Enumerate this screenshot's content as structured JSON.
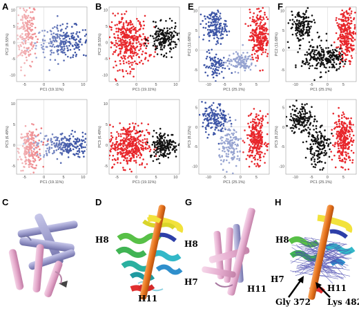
{
  "panel_letters": {
    "A": "A",
    "B": "B",
    "E": "E",
    "F": "F",
    "C": "C",
    "D": "D",
    "G": "G",
    "H": "H"
  },
  "colors": {
    "red": "#e8262b",
    "blue": "#3d55a6",
    "black": "#111111",
    "pink": "#e7b6d4",
    "lavender": "#a8a8d4"
  },
  "plots": {
    "A_top": {
      "xlabel": "PC1 (19.11%)",
      "ylabel": "PC2 (8.55%)"
    },
    "A_bot": {
      "xlabel": "PC1 (19.11%)",
      "ylabel": "PC3 (6.49%)"
    },
    "B_top": {
      "xlabel": "PC1 (19.11%)",
      "ylabel": "PC2 (8.55%)"
    },
    "B_bot": {
      "xlabel": "PC1 (19.11%)",
      "ylabel": "PC3 (6.49%)"
    },
    "E_top": {
      "xlabel": "PC1 (25.1%)",
      "ylabel": "PC2 (11.68%)"
    },
    "E_bot": {
      "xlabel": "PC1 (25.1%)",
      "ylabel": "PC3 (8.22%)"
    },
    "F_top": {
      "xlabel": "PC1 (25.1%)",
      "ylabel": "PC2 (11.68%)"
    },
    "F_bot": {
      "xlabel": "PC1 (25.1%)",
      "ylabel": "PC3 (8.22%)"
    }
  },
  "ticks": {
    "left_x": [
      "-5",
      "0",
      "5",
      "10"
    ],
    "left_y_top": [
      "-10",
      "-5",
      "0",
      "5",
      "10"
    ],
    "left_y_bot": [
      "-5",
      "0",
      "5",
      "10"
    ],
    "right_x": [
      "-10",
      "-5",
      "0",
      "5"
    ],
    "right_y_top": [
      "-5",
      "0",
      "5",
      "10"
    ],
    "right_y_bot": [
      "-10",
      "-5",
      "0",
      "5"
    ]
  },
  "structure_labels": {
    "D_H8": "H8",
    "D_H11": "H11",
    "G_H8": "H8",
    "G_H7": "H7",
    "G_H11": "H11",
    "H_H8": "H8",
    "H_H7": "H7",
    "H_H11": "H11",
    "H_gly": "Gly 372",
    "H_lys": "Lys 482"
  },
  "chart_data": [
    {
      "type": "scatter",
      "panel": "A",
      "xlabel": "PC1 (19.11%)",
      "ylabel": "PC2 (8.55%)",
      "xlim": [
        -7,
        11
      ],
      "ylim": [
        -12,
        11
      ],
      "coloring": "gradient red to blue",
      "series": [
        {
          "clusters": [
            {
              "cx": -4.5,
              "cy": 3,
              "sx": 1.3,
              "sy": 5,
              "n": 190,
              "color": "red gradient"
            },
            {
              "cx": 5,
              "cy": 0,
              "sx": 3.5,
              "sy": 2.5,
              "n": 230,
              "color": "blue gradient"
            }
          ]
        }
      ]
    },
    {
      "type": "scatter",
      "panel": "A",
      "xlabel": "PC1 (19.11%)",
      "ylabel": "PC3 (6.49%)",
      "xlim": [
        -7,
        11
      ],
      "ylim": [
        -7,
        11
      ],
      "coloring": "gradient red to blue",
      "series": [
        {
          "clusters": [
            {
              "cx": -3.5,
              "cy": -1,
              "sx": 1.4,
              "sy": 2.5,
              "n": 220,
              "color": "red gradient"
            },
            {
              "cx": 5,
              "cy": 0,
              "sx": 3.5,
              "sy": 1.5,
              "n": 220,
              "color": "blue gradient"
            }
          ]
        }
      ]
    },
    {
      "type": "scatter",
      "panel": "B",
      "xlabel": "PC1 (19.11%)",
      "ylabel": "PC2 (8.55%)",
      "xlim": [
        -7,
        11
      ],
      "ylim": [
        -12,
        11
      ],
      "coloring": "red and black",
      "series": [
        {
          "name": "",
          "clusters": [
            {
              "cx": -2,
              "cy": 0,
              "sx": 2.5,
              "sy": 4,
              "n": 360,
              "color": "red"
            },
            {
              "cx": 7,
              "cy": 1,
              "sx": 1.8,
              "sy": 2.2,
              "n": 180,
              "color": "black"
            }
          ]
        }
      ]
    },
    {
      "type": "scatter",
      "panel": "B",
      "xlabel": "PC1 (19.11%)",
      "ylabel": "PC3 (6.49%)",
      "xlim": [
        -7,
        11
      ],
      "ylim": [
        -7,
        11
      ],
      "coloring": "red and black",
      "series": [
        {
          "clusters": [
            {
              "cx": -2,
              "cy": 0,
              "sx": 2.5,
              "sy": 2.5,
              "n": 380,
              "color": "red"
            },
            {
              "cx": 7,
              "cy": 0,
              "sx": 1.8,
              "sy": 1.6,
              "n": 180,
              "color": "black"
            }
          ]
        }
      ]
    },
    {
      "type": "scatter",
      "panel": "E",
      "xlabel": "PC1 (25.1%)",
      "ylabel": "PC2 (11.68%)",
      "xlim": [
        -13,
        9
      ],
      "ylim": [
        -8,
        11
      ],
      "coloring": "gradient blue to red",
      "series": [
        {
          "clusters": [
            {
              "cx": -8,
              "cy": 6,
              "sx": 1.8,
              "sy": 2,
              "n": 160,
              "color": "blue"
            },
            {
              "cx": -8,
              "cy": -4,
              "sx": 1.6,
              "sy": 1.8,
              "n": 90,
              "color": "blue"
            },
            {
              "cx": 0,
              "cy": -3,
              "sx": 2,
              "sy": 1.2,
              "n": 120,
              "color": "light blue"
            },
            {
              "cx": 6,
              "cy": 4,
              "sx": 1.5,
              "sy": 3,
              "n": 260,
              "color": "red gradient"
            }
          ]
        }
      ]
    },
    {
      "type": "scatter",
      "panel": "E",
      "xlabel": "PC1 (25.1%)",
      "ylabel": "PC3 (8.22%)",
      "xlim": [
        -13,
        9
      ],
      "ylim": [
        -12,
        7
      ],
      "coloring": "gradient blue to red",
      "series": [
        {
          "clusters": [
            {
              "cx": -8,
              "cy": 2,
              "sx": 2,
              "sy": 2,
              "n": 160,
              "color": "blue"
            },
            {
              "cx": -3,
              "cy": -5,
              "sx": 1.8,
              "sy": 2.5,
              "n": 140,
              "color": "light blue"
            },
            {
              "cx": 5,
              "cy": -3,
              "sx": 1.5,
              "sy": 3,
              "n": 260,
              "color": "red gradient"
            }
          ]
        }
      ]
    },
    {
      "type": "scatter",
      "panel": "F",
      "xlabel": "PC1 (25.1%)",
      "ylabel": "PC2 (11.68%)",
      "xlim": [
        -13,
        9
      ],
      "ylim": [
        -8,
        11
      ],
      "coloring": "black and red",
      "series": [
        {
          "clusters": [
            {
              "cx": -8,
              "cy": 6,
              "sx": 1.8,
              "sy": 2,
              "n": 160,
              "color": "black"
            },
            {
              "cx": -3,
              "cy": -2,
              "sx": 2.5,
              "sy": 2,
              "n": 150,
              "color": "black"
            },
            {
              "cx": 2,
              "cy": -2,
              "sx": 1.5,
              "sy": 1.3,
              "n": 100,
              "color": "black"
            },
            {
              "cx": 6,
              "cy": 4,
              "sx": 1.5,
              "sy": 3,
              "n": 260,
              "color": "red"
            }
          ]
        }
      ]
    },
    {
      "type": "scatter",
      "panel": "F",
      "xlabel": "PC1 (25.1%)",
      "ylabel": "PC3 (8.22%)",
      "xlim": [
        -13,
        9
      ],
      "ylim": [
        -12,
        7
      ],
      "coloring": "black and red",
      "series": [
        {
          "clusters": [
            {
              "cx": -8,
              "cy": 2,
              "sx": 2,
              "sy": 2,
              "n": 160,
              "color": "black"
            },
            {
              "cx": -3,
              "cy": -5,
              "sx": 1.8,
              "sy": 2.5,
              "n": 160,
              "color": "black"
            },
            {
              "cx": 5,
              "cy": -3,
              "sx": 1.5,
              "sy": 3,
              "n": 260,
              "color": "red"
            }
          ]
        }
      ]
    }
  ]
}
